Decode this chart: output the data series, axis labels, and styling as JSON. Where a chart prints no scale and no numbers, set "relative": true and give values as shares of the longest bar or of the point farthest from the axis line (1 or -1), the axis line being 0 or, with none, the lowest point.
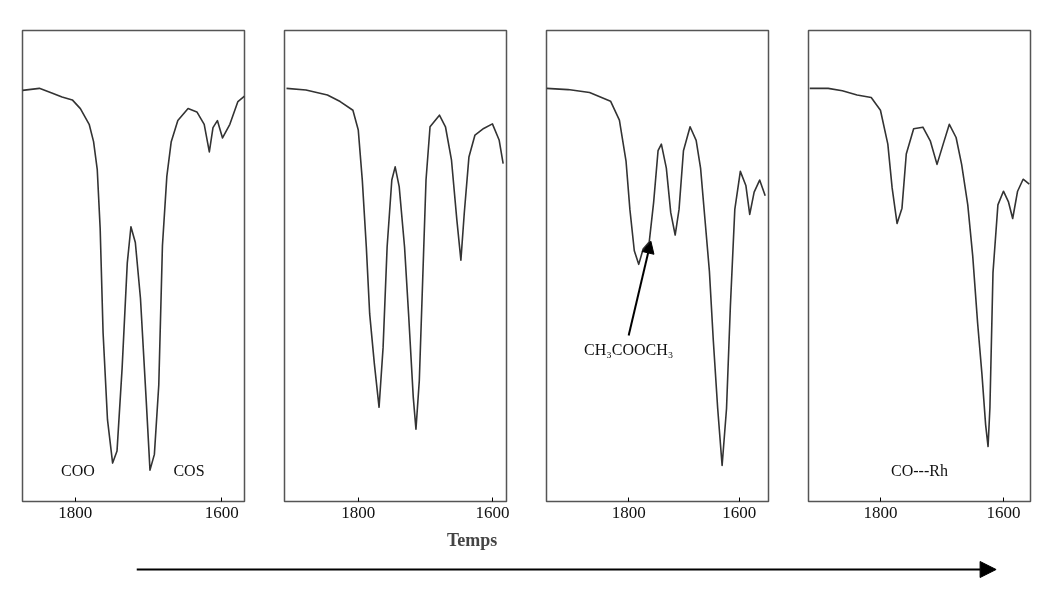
{
  "chart_data": [
    {
      "type": "line",
      "relative": true,
      "xlim": [
        1872,
        1569
      ],
      "xticks": [
        1800,
        1600
      ],
      "grid": false,
      "marker": "none",
      "line_style": "solid",
      "series": [
        {
          "color": "#333333",
          "x": [
            1872,
            1849,
            1832,
            1818,
            1804,
            1793,
            1781,
            1775,
            1770,
            1766,
            1762,
            1756,
            1749,
            1743,
            1736,
            1729,
            1724,
            1718,
            1711,
            1703,
            1698,
            1692,
            1686,
            1681,
            1675,
            1669,
            1660,
            1646,
            1634,
            1624,
            1617,
            1612,
            1606,
            1599,
            1589,
            1578,
            1569
          ],
          "values": [
            0.995,
            1,
            0.989,
            0.979,
            0.972,
            0.951,
            0.913,
            0.871,
            0.804,
            0.661,
            0.408,
            0.198,
            0.093,
            0.122,
            0.324,
            0.577,
            0.665,
            0.627,
            0.492,
            0.24,
            0.076,
            0.114,
            0.282,
            0.619,
            0.787,
            0.871,
            0.922,
            0.951,
            0.943,
            0.913,
            0.846,
            0.905,
            0.922,
            0.88,
            0.913,
            0.968,
            0.981
          ]
        }
      ],
      "annotations": [
        "COO",
        "COS"
      ]
    },
    {
      "type": "line",
      "relative": true,
      "xlim": [
        1910,
        1579
      ],
      "xticks": [
        1800,
        1600
      ],
      "grid": false,
      "marker": "none",
      "line_style": "solid",
      "xlabel": "Temps",
      "series": [
        {
          "color": "#333333",
          "x": [
            1907,
            1878,
            1846,
            1827,
            1808,
            1800,
            1794,
            1788,
            1783,
            1776,
            1769,
            1763,
            1757,
            1750,
            1745,
            1739,
            1731,
            1725,
            1718,
            1714,
            1709,
            1704,
            1699,
            1693,
            1679,
            1670,
            1661,
            1653,
            1647,
            1642,
            1635,
            1626,
            1613,
            1600,
            1590,
            1584
          ],
          "values": [
            1,
            0.996,
            0.984,
            0.968,
            0.947,
            0.899,
            0.778,
            0.616,
            0.454,
            0.333,
            0.228,
            0.373,
            0.616,
            0.778,
            0.81,
            0.762,
            0.616,
            0.454,
            0.252,
            0.175,
            0.293,
            0.535,
            0.778,
            0.907,
            0.935,
            0.907,
            0.826,
            0.681,
            0.584,
            0.697,
            0.834,
            0.887,
            0.903,
            0.914,
            0.875,
            0.818
          ]
        }
      ]
    },
    {
      "type": "line",
      "relative": true,
      "xlim": [
        1949,
        1547
      ],
      "xticks": [
        1800,
        1600
      ],
      "grid": false,
      "marker": "none",
      "line_style": "solid",
      "series": [
        {
          "color": "#333333",
          "x": [
            1949,
            1910,
            1871,
            1833,
            1817,
            1805,
            1798,
            1790,
            1782,
            1774,
            1763,
            1755,
            1747,
            1741,
            1732,
            1724,
            1716,
            1709,
            1701,
            1689,
            1678,
            1670,
            1662,
            1654,
            1647,
            1639,
            1631,
            1623,
            1616,
            1608,
            1598,
            1588,
            1581,
            1573,
            1563,
            1553
          ],
          "values": [
            1,
            0.997,
            0.99,
            0.969,
            0.923,
            0.824,
            0.707,
            0.607,
            0.574,
            0.611,
            0.628,
            0.724,
            0.849,
            0.865,
            0.807,
            0.699,
            0.645,
            0.707,
            0.849,
            0.907,
            0.874,
            0.807,
            0.682,
            0.557,
            0.391,
            0.225,
            0.087,
            0.225,
            0.474,
            0.707,
            0.799,
            0.765,
            0.695,
            0.749,
            0.778,
            0.74
          ]
        }
      ],
      "annotations": [
        {
          "text": "CH₃COOCH₃",
          "x": 1760,
          "y": 0.63
        }
      ]
    },
    {
      "type": "line",
      "relative": true,
      "xlim": [
        1917,
        1556
      ],
      "xticks": [
        1800,
        1600
      ],
      "grid": false,
      "marker": "none",
      "line_style": "solid",
      "series": [
        {
          "color": "#333333",
          "x": [
            1915,
            1885,
            1862,
            1838,
            1815,
            1800,
            1788,
            1781,
            1773,
            1765,
            1758,
            1746,
            1731,
            1719,
            1708,
            1698,
            1688,
            1677,
            1668,
            1658,
            1650,
            1642,
            1635,
            1629,
            1625,
            1622,
            1617,
            1609,
            1600,
            1592,
            1585,
            1577,
            1568,
            1558
          ],
          "values": [
            1,
            1,
            0.994,
            0.984,
            0.978,
            0.947,
            0.865,
            0.759,
            0.673,
            0.71,
            0.841,
            0.902,
            0.906,
            0.873,
            0.816,
            0.865,
            0.913,
            0.881,
            0.816,
            0.718,
            0.595,
            0.432,
            0.309,
            0.186,
            0.133,
            0.227,
            0.554,
            0.718,
            0.751,
            0.726,
            0.685,
            0.751,
            0.78,
            0.768
          ]
        }
      ],
      "annotations": [
        "CO---Rh"
      ]
    }
  ]
}
